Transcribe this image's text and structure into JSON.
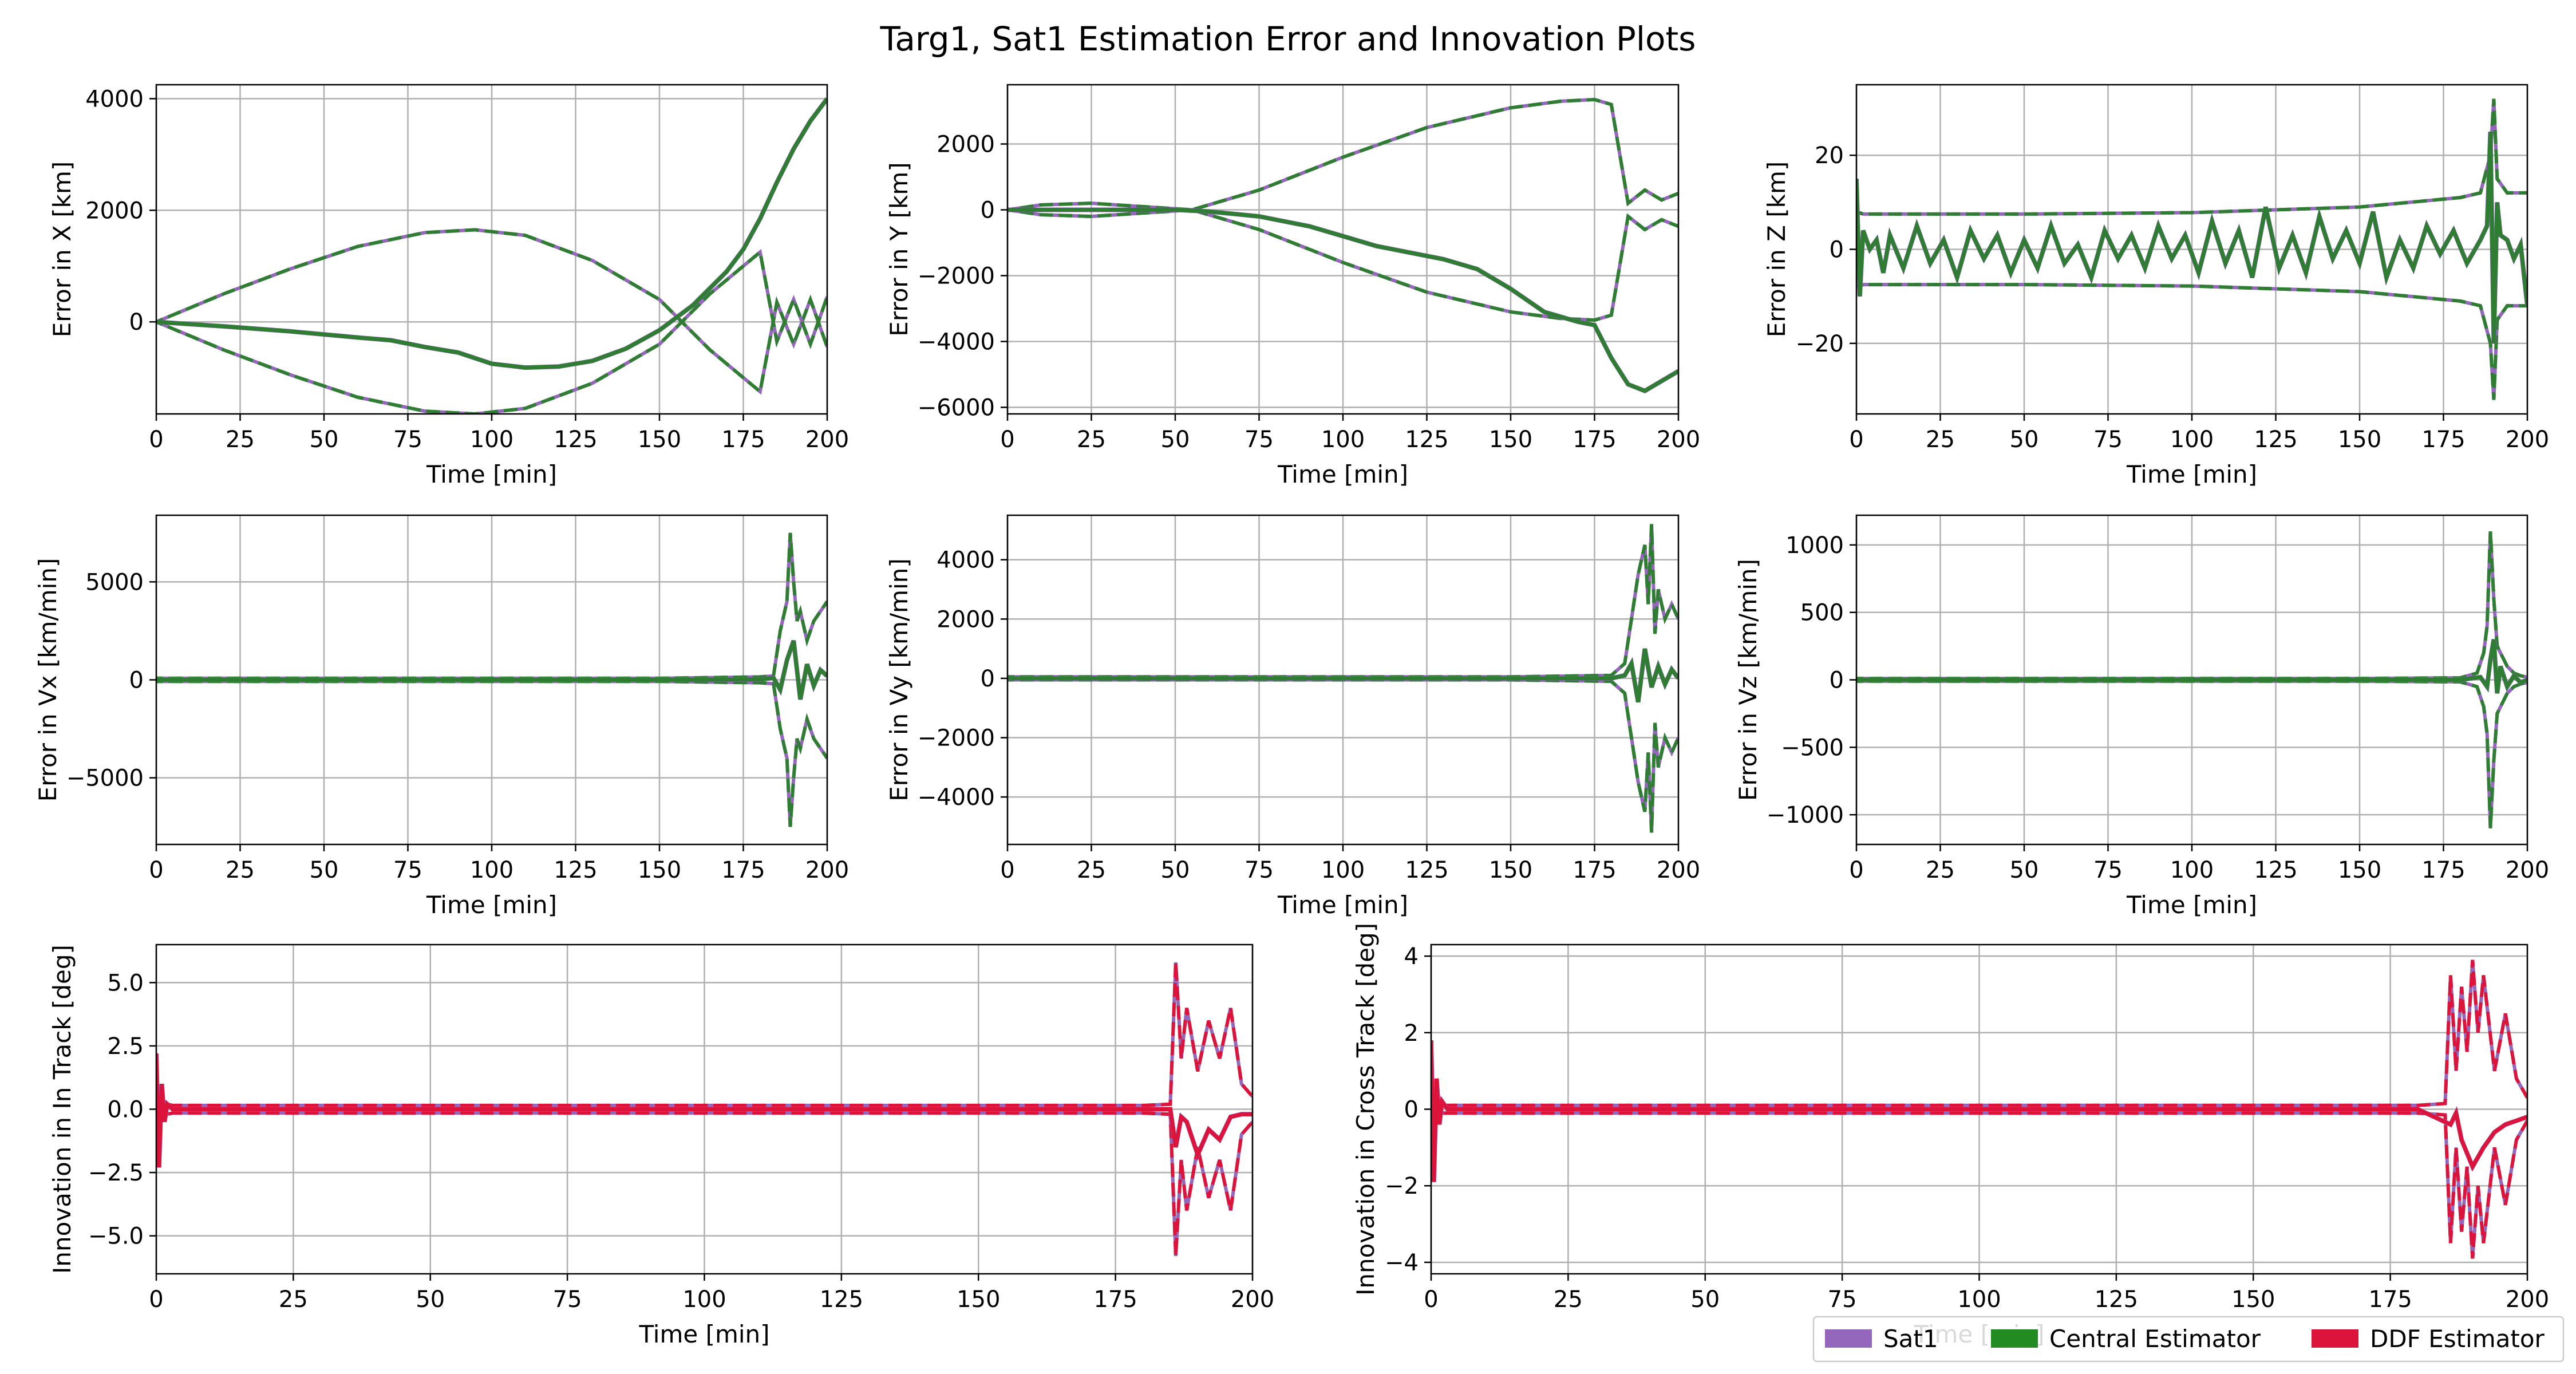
{
  "figure": {
    "title": "Targ1, Sat1 Estimation Error and Innovation Plots"
  },
  "legend": {
    "placement": "bottom-right",
    "entries": [
      {
        "label": "Sat1",
        "color": "#9467bd"
      },
      {
        "label": "Central Estimator",
        "color": "#228b22"
      },
      {
        "label": "DDF Estimator",
        "color": "#dc143c"
      }
    ]
  },
  "chart_data": [
    {
      "type": "line",
      "id": "x",
      "xlabel": "Time [min]",
      "ylabel": "Error in X [km]",
      "xlim": [
        0,
        200
      ],
      "ylim": [
        -1650,
        4250
      ],
      "xticks": [
        0,
        25,
        50,
        75,
        100,
        125,
        150,
        175,
        200
      ],
      "yticks": [
        0,
        2000,
        4000
      ],
      "grid": true,
      "error": {
        "x": [
          0,
          20,
          40,
          60,
          70,
          80,
          90,
          100,
          110,
          120,
          130,
          140,
          150,
          160,
          170,
          175,
          180,
          185,
          190,
          195,
          200
        ],
        "y": [
          0,
          -80,
          -170,
          -280,
          -330,
          -450,
          -550,
          -750,
          -820,
          -800,
          -700,
          -480,
          -150,
          300,
          900,
          1300,
          1850,
          2500,
          3100,
          3600,
          4000
        ]
      },
      "bound_upper": {
        "x": [
          0,
          20,
          40,
          60,
          80,
          95,
          110,
          130,
          150,
          165,
          175,
          180,
          185,
          190,
          195,
          200
        ],
        "y": [
          0,
          500,
          950,
          1350,
          1600,
          1650,
          1550,
          1100,
          400,
          -500,
          -1000,
          -1250,
          350,
          -400,
          400,
          -450
        ]
      },
      "bound_lower": {
        "x": [
          0,
          20,
          40,
          60,
          80,
          95,
          110,
          130,
          150,
          165,
          175,
          180,
          185,
          190,
          195,
          200
        ],
        "y": [
          0,
          -500,
          -950,
          -1350,
          -1600,
          -1650,
          -1550,
          -1100,
          -400,
          500,
          1000,
          1250,
          -350,
          400,
          -400,
          450
        ]
      }
    },
    {
      "type": "line",
      "id": "y",
      "xlabel": "Time [min]",
      "ylabel": "Error in Y [km]",
      "xlim": [
        0,
        200
      ],
      "ylim": [
        -6200,
        3800
      ],
      "xticks": [
        0,
        25,
        50,
        75,
        100,
        125,
        150,
        175,
        200
      ],
      "yticks": [
        -6000,
        -4000,
        -2000,
        0,
        2000
      ],
      "grid": true,
      "error": {
        "x": [
          0,
          25,
          50,
          60,
          75,
          90,
          100,
          110,
          120,
          130,
          140,
          150,
          160,
          170,
          175,
          180,
          185,
          190,
          195,
          200
        ],
        "y": [
          0,
          0,
          0,
          -50,
          -200,
          -500,
          -800,
          -1100,
          -1300,
          -1500,
          -1800,
          -2400,
          -3100,
          -3400,
          -3500,
          -4500,
          -5300,
          -5500,
          -5200,
          -4900
        ]
      },
      "bound_upper": {
        "x": [
          0,
          10,
          25,
          40,
          55,
          75,
          100,
          125,
          150,
          165,
          175,
          180,
          185,
          190,
          195,
          200
        ],
        "y": [
          0,
          150,
          200,
          100,
          0,
          600,
          1600,
          2500,
          3100,
          3300,
          3350,
          3200,
          200,
          600,
          300,
          500
        ]
      },
      "bound_lower": {
        "x": [
          0,
          10,
          25,
          40,
          55,
          75,
          100,
          125,
          150,
          165,
          175,
          180,
          185,
          190,
          195,
          200
        ],
        "y": [
          0,
          -150,
          -200,
          -100,
          0,
          -600,
          -1600,
          -2500,
          -3100,
          -3300,
          -3350,
          -3200,
          -200,
          -600,
          -300,
          -500
        ]
      }
    },
    {
      "type": "line",
      "id": "z",
      "xlabel": "Time [min]",
      "ylabel": "Error in Z [km]",
      "xlim": [
        0,
        200
      ],
      "ylim": [
        -35,
        35
      ],
      "xticks": [
        0,
        25,
        50,
        75,
        100,
        125,
        150,
        175,
        200
      ],
      "yticks": [
        -20,
        0,
        20
      ],
      "grid": true,
      "error": {
        "x": [
          0,
          1,
          2,
          4,
          6,
          8,
          10,
          14,
          18,
          22,
          26,
          30,
          34,
          38,
          42,
          46,
          50,
          54,
          58,
          62,
          66,
          70,
          74,
          78,
          82,
          86,
          90,
          94,
          98,
          102,
          106,
          110,
          114,
          118,
          122,
          126,
          130,
          134,
          138,
          142,
          146,
          150,
          154,
          158,
          162,
          166,
          170,
          174,
          178,
          182,
          186,
          188,
          189,
          190,
          191,
          192,
          194,
          196,
          198,
          200
        ],
        "y": [
          15,
          -10,
          4,
          0,
          2,
          -5,
          3,
          -4,
          5,
          -3,
          2,
          -6,
          4,
          -2,
          3,
          -5,
          2,
          -4,
          5,
          -3,
          1,
          -6,
          4,
          -2,
          3,
          -4,
          5,
          -2,
          3,
          -5,
          6,
          -3,
          4,
          -6,
          9,
          -4,
          3,
          -5,
          7,
          -2,
          4,
          -3,
          8,
          -6,
          2,
          -4,
          5,
          -1,
          4,
          -3,
          2,
          5,
          25,
          -20,
          10,
          3,
          2,
          -2,
          1,
          -12
        ]
      },
      "bound_upper": {
        "x": [
          0,
          2,
          50,
          100,
          150,
          180,
          186,
          189,
          190,
          191,
          194,
          200
        ],
        "y": [
          8,
          7.5,
          7.5,
          7.8,
          9,
          11,
          12,
          20,
          32,
          15,
          12,
          12
        ]
      },
      "bound_lower": {
        "x": [
          0,
          2,
          50,
          100,
          150,
          180,
          186,
          189,
          190,
          191,
          194,
          200
        ],
        "y": [
          -8,
          -7.5,
          -7.5,
          -7.8,
          -9,
          -11,
          -12,
          -20,
          -32,
          -15,
          -12,
          -12
        ]
      }
    },
    {
      "type": "line",
      "id": "vx",
      "xlabel": "Time [min]",
      "ylabel": "Error in Vx [km/min]",
      "xlim": [
        0,
        200
      ],
      "ylim": [
        -8400,
        8400
      ],
      "xticks": [
        0,
        25,
        50,
        75,
        100,
        125,
        150,
        175,
        200
      ],
      "yticks": [
        -5000,
        0,
        5000
      ],
      "grid": true,
      "error": {
        "x": [
          0,
          50,
          100,
          150,
          180,
          184,
          186,
          188,
          190,
          192,
          194,
          196,
          198,
          200
        ],
        "y": [
          0,
          0,
          0,
          0,
          20,
          100,
          -500,
          1000,
          2000,
          -1000,
          800,
          -300,
          500,
          200
        ]
      },
      "bound_upper": {
        "x": [
          0,
          50,
          100,
          150,
          180,
          184,
          186,
          188,
          189,
          190,
          191,
          192,
          194,
          196,
          198,
          200
        ],
        "y": [
          80,
          80,
          80,
          80,
          150,
          200,
          2500,
          4000,
          7500,
          5000,
          3000,
          3500,
          2000,
          3000,
          3500,
          4000
        ]
      },
      "bound_lower": {
        "x": [
          0,
          50,
          100,
          150,
          180,
          184,
          186,
          188,
          189,
          190,
          191,
          192,
          194,
          196,
          198,
          200
        ],
        "y": [
          -80,
          -80,
          -80,
          -80,
          -150,
          -200,
          -2500,
          -4000,
          -7500,
          -5000,
          -3000,
          -3500,
          -2000,
          -3000,
          -3500,
          -4000
        ]
      }
    },
    {
      "type": "line",
      "id": "vy",
      "xlabel": "Time [min]",
      "ylabel": "Error in Vy [km/min]",
      "xlim": [
        0,
        200
      ],
      "ylim": [
        -5600,
        5500
      ],
      "xticks": [
        0,
        25,
        50,
        75,
        100,
        125,
        150,
        175,
        200
      ],
      "yticks": [
        -4000,
        -2000,
        0,
        2000,
        4000
      ],
      "grid": true,
      "error": {
        "x": [
          0,
          50,
          100,
          150,
          180,
          184,
          186,
          188,
          190,
          192,
          194,
          196,
          198,
          200
        ],
        "y": [
          0,
          0,
          0,
          0,
          0,
          100,
          500,
          -800,
          1000,
          -300,
          400,
          -200,
          300,
          0
        ]
      },
      "bound_upper": {
        "x": [
          0,
          50,
          100,
          150,
          180,
          184,
          186,
          188,
          190,
          191,
          192,
          193,
          194,
          196,
          198,
          200
        ],
        "y": [
          50,
          50,
          50,
          50,
          100,
          500,
          2000,
          3500,
          4500,
          2500,
          5200,
          1500,
          3000,
          2000,
          2500,
          2000
        ]
      },
      "bound_lower": {
        "x": [
          0,
          50,
          100,
          150,
          180,
          184,
          186,
          188,
          190,
          191,
          192,
          193,
          194,
          196,
          198,
          200
        ],
        "y": [
          -50,
          -50,
          -50,
          -50,
          -100,
          -500,
          -2000,
          -3500,
          -4500,
          -2500,
          -5200,
          -1500,
          -3000,
          -2000,
          -2500,
          -2000
        ]
      }
    },
    {
      "type": "line",
      "id": "vz",
      "xlabel": "Time [min]",
      "ylabel": "Error in Vz [km/min]",
      "xlim": [
        0,
        200
      ],
      "ylim": [
        -1220,
        1220
      ],
      "xticks": [
        0,
        25,
        50,
        75,
        100,
        125,
        150,
        175,
        200
      ],
      "yticks": [
        -1000,
        -500,
        0,
        500,
        1000
      ],
      "grid": true,
      "error": {
        "x": [
          0,
          50,
          100,
          150,
          180,
          186,
          188,
          189,
          190,
          191,
          192,
          194,
          196,
          198,
          200
        ],
        "y": [
          0,
          0,
          0,
          0,
          0,
          20,
          -50,
          150,
          300,
          -100,
          100,
          -50,
          30,
          -20,
          0
        ]
      },
      "bound_upper": {
        "x": [
          0,
          50,
          100,
          150,
          180,
          185,
          187,
          188,
          189,
          190,
          191,
          192,
          194,
          196,
          198,
          200
        ],
        "y": [
          10,
          10,
          10,
          10,
          15,
          50,
          200,
          400,
          1100,
          600,
          250,
          200,
          100,
          50,
          30,
          20
        ]
      },
      "bound_lower": {
        "x": [
          0,
          50,
          100,
          150,
          180,
          185,
          187,
          188,
          189,
          190,
          191,
          192,
          194,
          196,
          198,
          200
        ],
        "y": [
          -10,
          -10,
          -10,
          -10,
          -15,
          -50,
          -200,
          -400,
          -1100,
          -600,
          -250,
          -200,
          -100,
          -50,
          -30,
          -20
        ]
      }
    },
    {
      "type": "line",
      "id": "intrack",
      "xlabel": "Time [min]",
      "ylabel": "Innovation in In Track [deg]",
      "xlim": [
        0,
        200
      ],
      "ylim": [
        -6.5,
        6.5
      ],
      "xticks": [
        0,
        25,
        50,
        75,
        100,
        125,
        150,
        175,
        200
      ],
      "yticks": [
        -5.0,
        -2.5,
        0.0,
        2.5,
        5.0
      ],
      "tick_decimals": 1,
      "grid": true,
      "error": {
        "x": [
          0,
          0.5,
          1,
          1.5,
          2,
          3,
          10,
          50,
          100,
          150,
          180,
          185,
          186,
          187,
          188,
          190,
          192,
          194,
          196,
          198,
          200
        ],
        "y": [
          2.2,
          -2.3,
          1.0,
          -0.5,
          0.2,
          0,
          0,
          0,
          0,
          0,
          0,
          0,
          -1.5,
          -0.3,
          -0.5,
          -1.8,
          -0.8,
          -1.2,
          -0.3,
          -0.2,
          -0.2
        ]
      },
      "bound_upper": {
        "x": [
          0,
          1,
          2,
          3,
          10,
          50,
          100,
          150,
          180,
          185,
          186,
          187,
          188,
          190,
          192,
          194,
          196,
          198,
          200
        ],
        "y": [
          0.3,
          0.25,
          0.2,
          0.15,
          0.15,
          0.15,
          0.15,
          0.15,
          0.15,
          0.2,
          5.8,
          2.0,
          4.0,
          1.5,
          3.5,
          2.0,
          4.0,
          1.0,
          0.5
        ]
      },
      "bound_lower": {
        "x": [
          0,
          1,
          2,
          3,
          10,
          50,
          100,
          150,
          180,
          185,
          186,
          187,
          188,
          190,
          192,
          194,
          196,
          198,
          200
        ],
        "y": [
          -0.3,
          -0.25,
          -0.2,
          -0.15,
          -0.15,
          -0.15,
          -0.15,
          -0.15,
          -0.15,
          -0.2,
          -5.8,
          -2.0,
          -4.0,
          -1.5,
          -3.5,
          -2.0,
          -4.0,
          -1.0,
          -0.5
        ]
      }
    },
    {
      "type": "line",
      "id": "crosstrack",
      "xlabel": "Time [min]",
      "ylabel": "Innovation in Cross Track [deg]",
      "xlim": [
        0,
        200
      ],
      "ylim": [
        -4.3,
        4.3
      ],
      "xticks": [
        0,
        25,
        50,
        75,
        100,
        125,
        150,
        175,
        200
      ],
      "yticks": [
        -4,
        -2,
        0,
        2,
        4
      ],
      "grid": true,
      "error": {
        "x": [
          0,
          0.5,
          1,
          1.5,
          2,
          3,
          10,
          50,
          100,
          150,
          180,
          186,
          187,
          188,
          190,
          192,
          194,
          196,
          198,
          200
        ],
        "y": [
          1.8,
          -1.9,
          0.8,
          -0.4,
          0.2,
          0,
          0,
          0,
          0,
          0,
          0,
          -0.4,
          -0.1,
          -0.8,
          -1.5,
          -1.0,
          -0.6,
          -0.4,
          -0.3,
          -0.2
        ]
      },
      "bound_upper": {
        "x": [
          0,
          1,
          2,
          3,
          10,
          50,
          100,
          150,
          180,
          185,
          186,
          187,
          188,
          189,
          190,
          191,
          192,
          194,
          196,
          198,
          200
        ],
        "y": [
          0.15,
          0.12,
          0.1,
          0.1,
          0.1,
          0.1,
          0.1,
          0.1,
          0.1,
          0.15,
          3.5,
          1.0,
          3.2,
          1.5,
          3.9,
          2.0,
          3.5,
          1.0,
          2.5,
          0.8,
          0.3
        ]
      },
      "bound_lower": {
        "x": [
          0,
          1,
          2,
          3,
          10,
          50,
          100,
          150,
          180,
          185,
          186,
          187,
          188,
          189,
          190,
          191,
          192,
          194,
          196,
          198,
          200
        ],
        "y": [
          -0.15,
          -0.12,
          -0.1,
          -0.1,
          -0.1,
          -0.1,
          -0.1,
          -0.1,
          -0.1,
          -0.15,
          -3.5,
          -1.0,
          -3.2,
          -1.5,
          -3.9,
          -2.0,
          -3.5,
          -1.0,
          -2.5,
          -0.8,
          -0.3
        ]
      }
    }
  ]
}
